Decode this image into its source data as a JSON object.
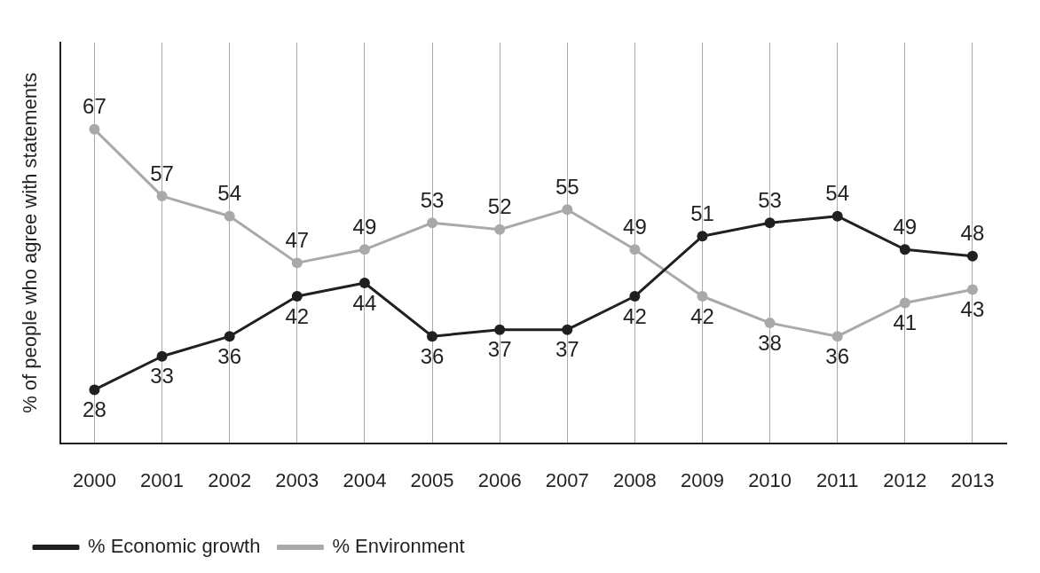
{
  "chart_data": {
    "type": "line",
    "ylabel": "% of people who agree with statements",
    "categories": [
      "2000",
      "2001",
      "2002",
      "2003",
      "2004",
      "2005",
      "2006",
      "2007",
      "2008",
      "2009",
      "2010",
      "2011",
      "2012",
      "2013"
    ],
    "series": [
      {
        "name": "% Economic growth",
        "color": "#231f20",
        "values": [
          28,
          33,
          36,
          42,
          44,
          36,
          37,
          37,
          42,
          51,
          53,
          54,
          49,
          48
        ]
      },
      {
        "name": "% Environment",
        "color": "#a7a9ac",
        "values": [
          67,
          57,
          54,
          47,
          49,
          53,
          52,
          55,
          49,
          42,
          38,
          36,
          41,
          43
        ]
      }
    ],
    "data_labels": true,
    "grid": "x",
    "legend": "bottom left",
    "marker": "circle",
    "line_style": "solid"
  }
}
